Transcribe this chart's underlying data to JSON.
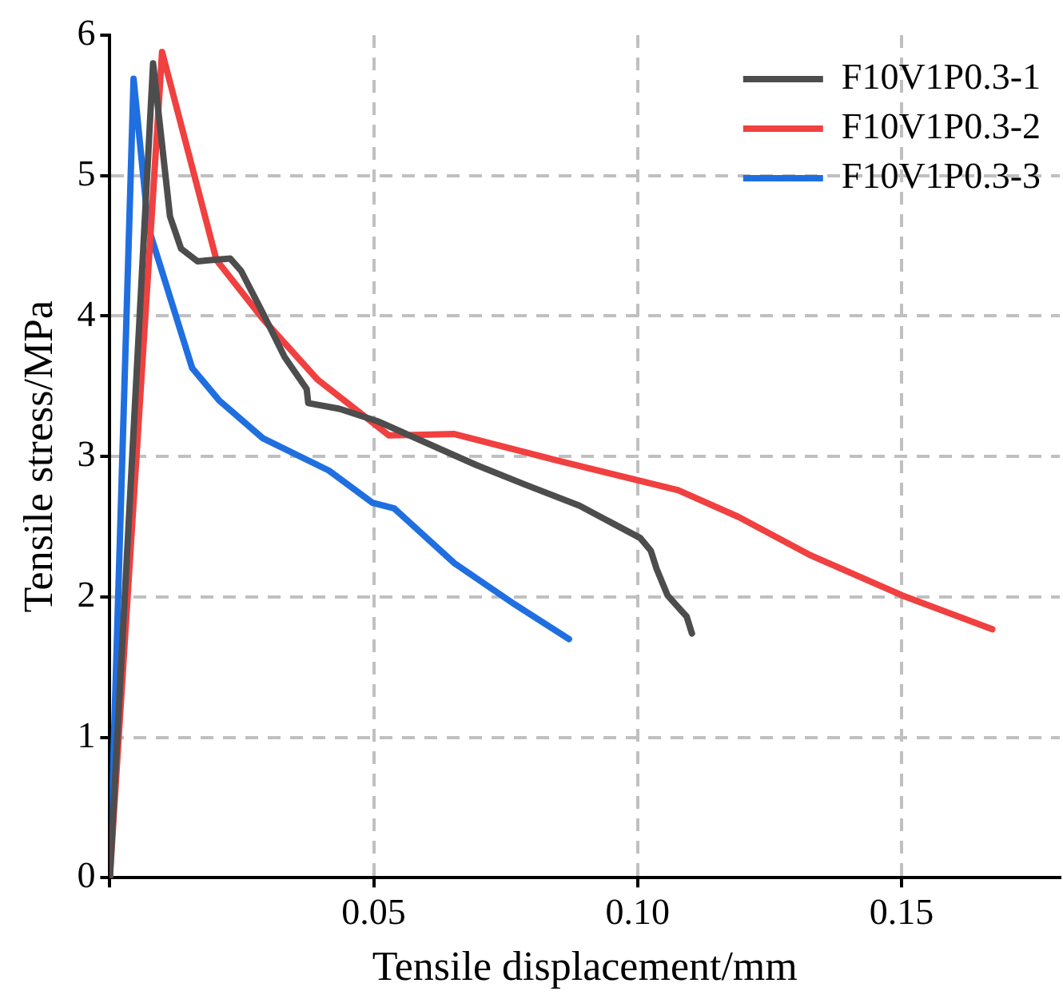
{
  "chart_data": {
    "type": "line",
    "xlabel": "Tensile displacement/mm",
    "ylabel": "Tensile stress/MPa",
    "xlim": [
      0,
      0.18
    ],
    "ylim": [
      0,
      6
    ],
    "xticks": [
      {
        "value": 0,
        "label": null
      },
      0.05,
      {
        "value": 0.1,
        "label": "0.10"
      },
      0.15
    ],
    "yticks": [
      0,
      1,
      2,
      3,
      4,
      5,
      6
    ],
    "grid": true,
    "legend": "top right",
    "marker": "none",
    "line_style": "solid",
    "series": [
      {
        "name": "F10V1P0.3-1",
        "color": "#4d4d4d",
        "x": [
          0,
          0.0082,
          0.0114,
          0.0135,
          0.0166,
          0.0228,
          0.0249,
          0.029,
          0.0331,
          0.0373,
          0.0376,
          0.0435,
          0.0508,
          0.0694,
          0.0787,
          0.089,
          0.1005,
          0.1025,
          0.1036,
          0.1057,
          0.1093,
          0.1103
        ],
        "values": [
          0,
          5.8,
          4.71,
          4.48,
          4.39,
          4.41,
          4.32,
          4.02,
          3.71,
          3.48,
          3.38,
          3.34,
          3.25,
          2.94,
          2.8,
          2.65,
          2.42,
          2.33,
          2.2,
          2.01,
          1.86,
          1.74
        ]
      },
      {
        "name": "F10V1P0.3-2",
        "color": "#f04040",
        "x": [
          0,
          0.0099,
          0.0202,
          0.029,
          0.0393,
          0.0529,
          0.0653,
          0.0849,
          0.1077,
          0.1191,
          0.1326,
          0.1502,
          0.1672
        ],
        "values": [
          0,
          5.88,
          4.4,
          3.98,
          3.55,
          3.15,
          3.16,
          2.97,
          2.76,
          2.57,
          2.3,
          2.01,
          1.77
        ]
      },
      {
        "name": "F10V1P0.3-3",
        "color": "#1f6fe0",
        "x": [
          0,
          0.0045,
          0.0073,
          0.0156,
          0.0207,
          0.029,
          0.0415,
          0.0498,
          0.0539,
          0.0653,
          0.0766,
          0.087
        ],
        "values": [
          0,
          5.69,
          4.63,
          3.63,
          3.4,
          3.13,
          2.9,
          2.67,
          2.63,
          2.24,
          1.95,
          1.7
        ]
      }
    ]
  }
}
